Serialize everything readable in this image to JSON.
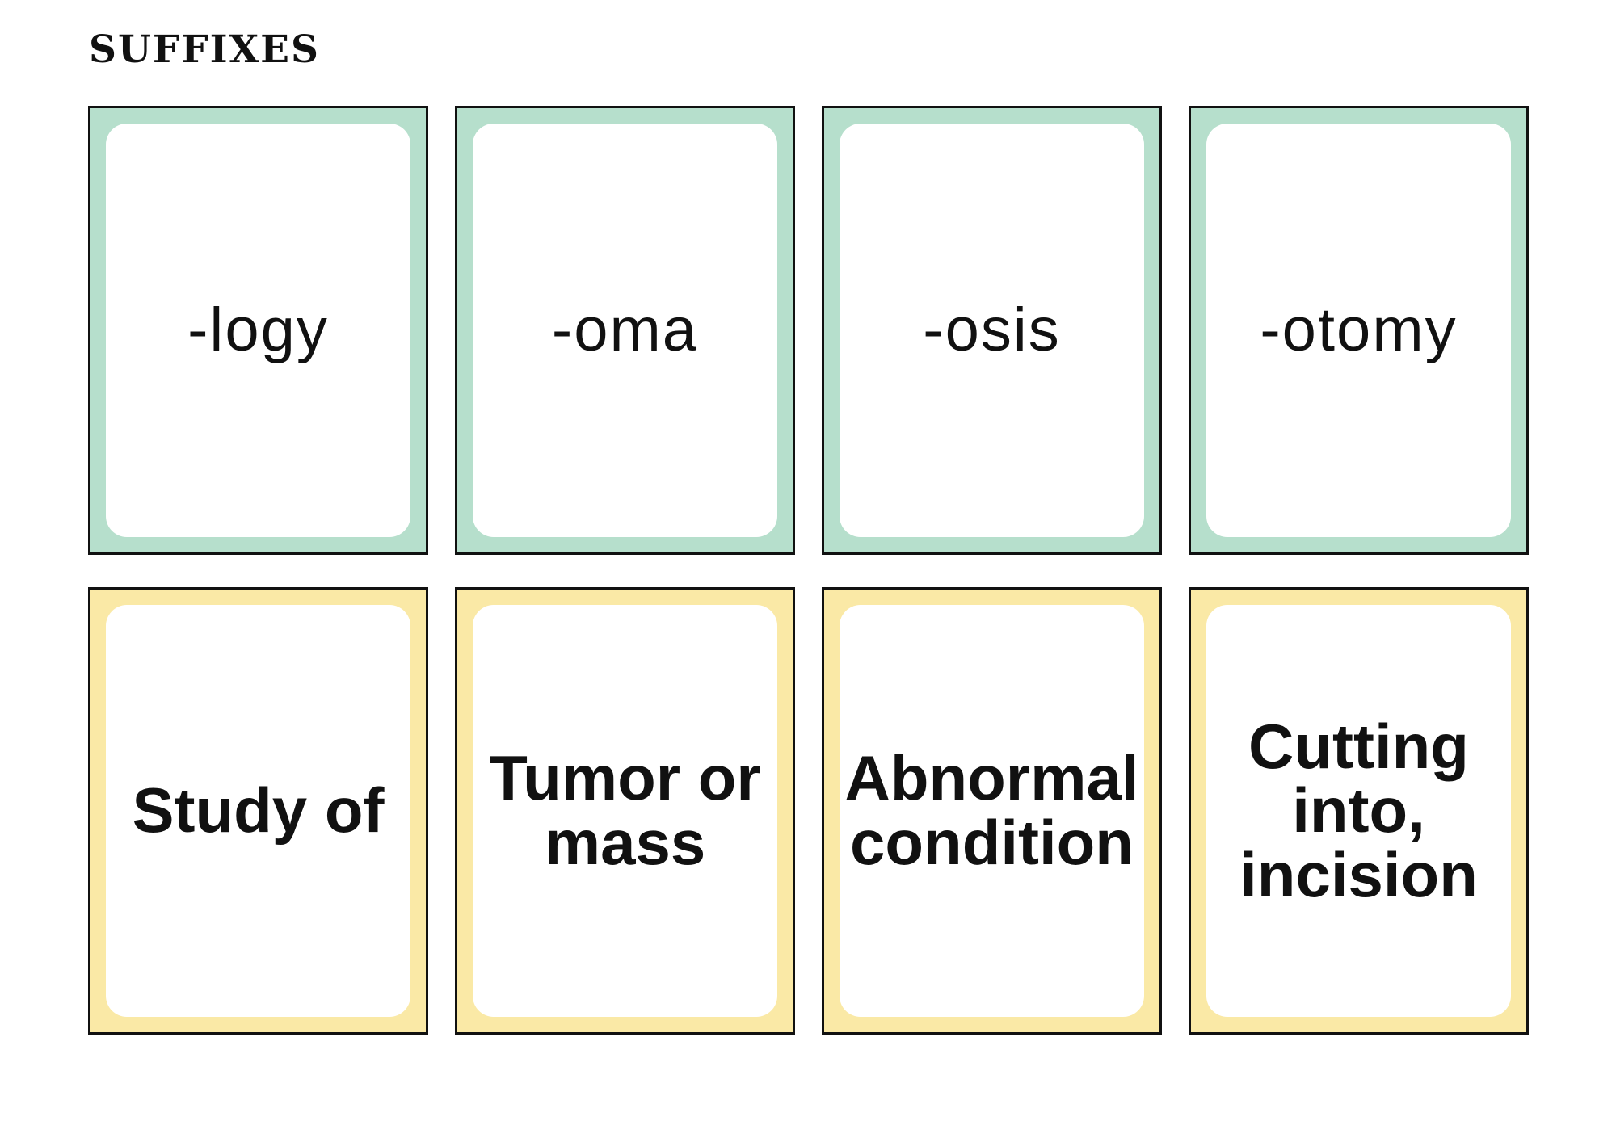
{
  "page": {
    "title": "SUFFIXES"
  },
  "cards": {
    "suffixes": [
      {
        "label": "-logy"
      },
      {
        "label": "-oma"
      },
      {
        "label": "-osis"
      },
      {
        "label": "-otomy"
      }
    ],
    "meanings": [
      {
        "label": "Study of"
      },
      {
        "label": "Tumor or\nmass"
      },
      {
        "label": "Abnormal\ncondition"
      },
      {
        "label": "Cutting\ninto,\nincision"
      }
    ]
  },
  "colors": {
    "suffix_frame": "#b6dfcc",
    "meaning_frame": "#fae9a6",
    "card_outline": "#111111",
    "text_color": "#111111",
    "page_bg": "#ffffff"
  }
}
